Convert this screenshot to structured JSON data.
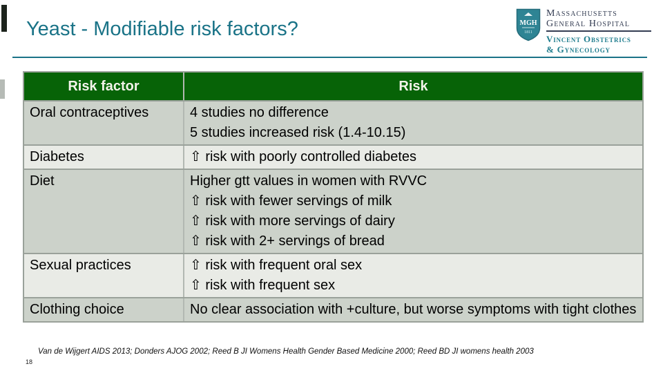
{
  "slide": {
    "title": "Yeast - Modifiable risk factors?",
    "page_number": "18",
    "citation": "Van de Wijgert AIDS 2013; Donders AJOG 2002; Reed B JI Womens Health Gender Based Medicine 2000; Reed BD JI womens health 2003"
  },
  "logo": {
    "shield_text": "MGH",
    "shield_year": "1811",
    "org_line1": "Massachusetts",
    "org_line2": "General Hospital",
    "dept_line1": "Vincent Obstetrics",
    "dept_line2": "& Gynecology"
  },
  "table": {
    "headers": [
      "Risk factor",
      "Risk"
    ],
    "rows": [
      {
        "factor": "Oral contraceptives",
        "risk_lines": [
          "4 studies no difference",
          "5 studies increased risk (1.4-10.15)"
        ]
      },
      {
        "factor": "Diabetes",
        "risk_lines": [
          "⇧ risk with poorly controlled diabetes"
        ]
      },
      {
        "factor": "Diet",
        "risk_lines": [
          "Higher gtt values in women with RVVC",
          "⇧ risk with fewer servings of milk",
          "⇧ risk with more servings of dairy",
          "⇧ risk with 2+ servings of bread"
        ]
      },
      {
        "factor": "Sexual practices",
        "risk_lines": [
          "⇧ risk with frequent oral sex",
          "⇧ risk with frequent sex"
        ]
      },
      {
        "factor": "Clothing choice",
        "risk_lines": [
          "No clear association with +culture, but worse symptoms with tight clothes"
        ]
      }
    ]
  },
  "colors": {
    "accent_teal": "#1a7387",
    "header_green": "#076307",
    "band_dark": "#ccd2ca",
    "band_light": "#e9ebe6",
    "logo_navy": "#333c52",
    "shield_teal": "#2e8494"
  }
}
